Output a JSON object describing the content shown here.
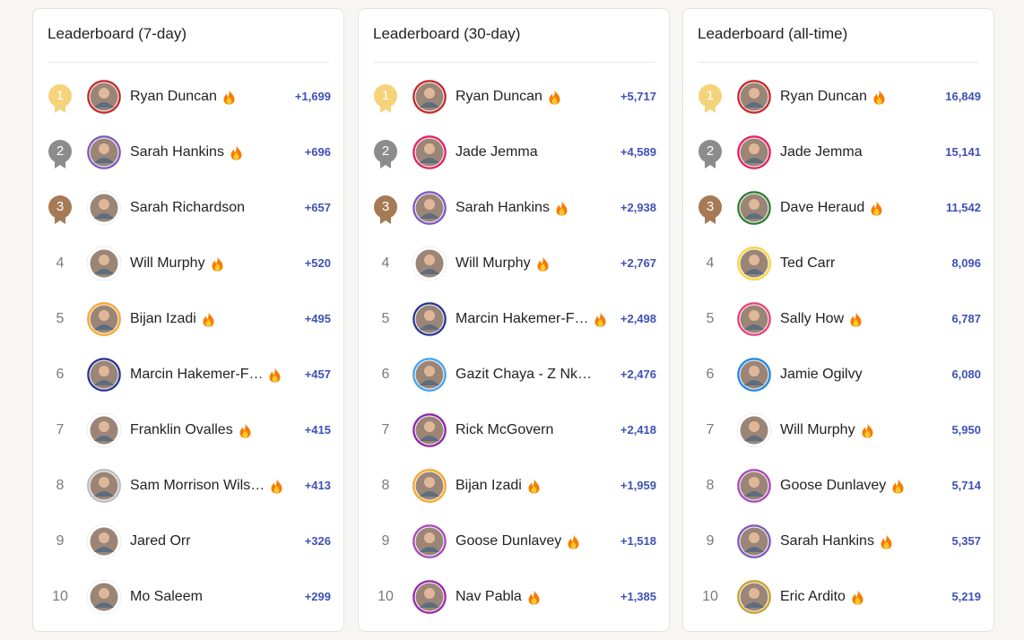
{
  "boards": [
    {
      "title": "Leaderboard (7-day)",
      "rows": [
        {
          "rank": 1,
          "name": "Ryan Duncan",
          "score": "+1,699",
          "streak": true,
          "ring": "#c62828"
        },
        {
          "rank": 2,
          "name": "Sarah Hankins",
          "score": "+696",
          "streak": true,
          "ring": "#7e57c2"
        },
        {
          "rank": 3,
          "name": "Sarah Richardson",
          "score": "+657",
          "streak": false,
          "ring": "#ffffff"
        },
        {
          "rank": 4,
          "name": "Will Murphy",
          "score": "+520",
          "streak": true,
          "ring": "#ffffff"
        },
        {
          "rank": 5,
          "name": "Bijan Izadi",
          "score": "+495",
          "streak": true,
          "ring": "#f9a825"
        },
        {
          "rank": 6,
          "name": "Marcin Hakemer-F…",
          "score": "+457",
          "streak": true,
          "ring": "#283593"
        },
        {
          "rank": 7,
          "name": "Franklin Ovalles",
          "score": "+415",
          "streak": true,
          "ring": "#ffffff"
        },
        {
          "rank": 8,
          "name": "Sam Morrison Wils…",
          "score": "+413",
          "streak": true,
          "ring": "#bdbdbd"
        },
        {
          "rank": 9,
          "name": "Jared Orr",
          "score": "+326",
          "streak": false,
          "ring": "#ffffff"
        },
        {
          "rank": 10,
          "name": "Mo Saleem",
          "score": "+299",
          "streak": false,
          "ring": "#ffffff"
        }
      ]
    },
    {
      "title": "Leaderboard (30-day)",
      "rows": [
        {
          "rank": 1,
          "name": "Ryan Duncan",
          "score": "+5,717",
          "streak": true,
          "ring": "#c62828"
        },
        {
          "rank": 2,
          "name": "Jade Jemma",
          "score": "+4,589",
          "streak": false,
          "ring": "#e91e63"
        },
        {
          "rank": 3,
          "name": "Sarah Hankins",
          "score": "+2,938",
          "streak": true,
          "ring": "#7e57c2"
        },
        {
          "rank": 4,
          "name": "Will Murphy",
          "score": "+2,767",
          "streak": true,
          "ring": "#ffffff"
        },
        {
          "rank": 5,
          "name": "Marcin Hakemer-F…",
          "score": "+2,498",
          "streak": true,
          "ring": "#283593"
        },
        {
          "rank": 6,
          "name": "Gazit Chaya - Z Nk…",
          "score": "+2,476",
          "streak": false,
          "ring": "#42a5f5"
        },
        {
          "rank": 7,
          "name": "Rick McGovern",
          "score": "+2,418",
          "streak": false,
          "ring": "#8e24aa"
        },
        {
          "rank": 8,
          "name": "Bijan Izadi",
          "score": "+1,959",
          "streak": true,
          "ring": "#f9a825"
        },
        {
          "rank": 9,
          "name": "Goose Dunlavey",
          "score": "+1,518",
          "streak": true,
          "ring": "#ab47bc"
        },
        {
          "rank": 10,
          "name": "Nav Pabla",
          "score": "+1,385",
          "streak": true,
          "ring": "#9c27b0"
        }
      ]
    },
    {
      "title": "Leaderboard (all-time)",
      "rows": [
        {
          "rank": 1,
          "name": "Ryan Duncan",
          "score": "16,849",
          "streak": true,
          "ring": "#c62828"
        },
        {
          "rank": 2,
          "name": "Jade Jemma",
          "score": "15,141",
          "streak": false,
          "ring": "#e91e63"
        },
        {
          "rank": 3,
          "name": "Dave Heraud",
          "score": "11,542",
          "streak": true,
          "ring": "#2e7d32"
        },
        {
          "rank": 4,
          "name": "Ted Carr",
          "score": "8,096",
          "streak": false,
          "ring": "#fdd835"
        },
        {
          "rank": 5,
          "name": "Sally How",
          "score": "6,787",
          "streak": true,
          "ring": "#ec407a"
        },
        {
          "rank": 6,
          "name": "Jamie Ogilvy",
          "score": "6,080",
          "streak": false,
          "ring": "#1e88e5"
        },
        {
          "rank": 7,
          "name": "Will Murphy",
          "score": "5,950",
          "streak": true,
          "ring": "#ffffff"
        },
        {
          "rank": 8,
          "name": "Goose Dunlavey",
          "score": "5,714",
          "streak": true,
          "ring": "#ab47bc"
        },
        {
          "rank": 9,
          "name": "Sarah Hankins",
          "score": "5,357",
          "streak": true,
          "ring": "#7e57c2"
        },
        {
          "rank": 10,
          "name": "Eric Ardito",
          "score": "5,219",
          "streak": true,
          "ring": "#c9a227"
        }
      ]
    }
  ]
}
